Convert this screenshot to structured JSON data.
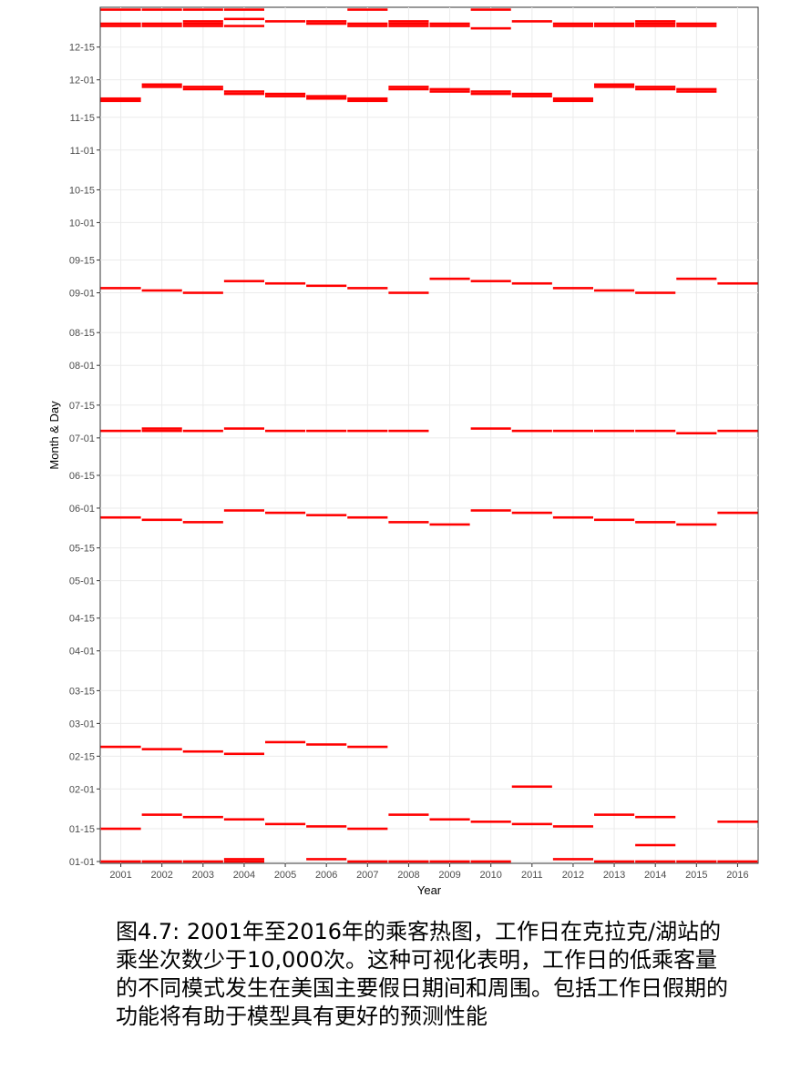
{
  "chart_data": {
    "type": "heatmap",
    "xlabel": "Year",
    "ylabel": "Month & Day",
    "years": [
      "2001",
      "2002",
      "2003",
      "2004",
      "2005",
      "2006",
      "2007",
      "2008",
      "2009",
      "2010",
      "2011",
      "2012",
      "2013",
      "2014",
      "2015",
      "2016"
    ],
    "y_ticks": [
      "01-01",
      "01-15",
      "02-01",
      "02-15",
      "03-01",
      "03-15",
      "04-01",
      "04-15",
      "05-01",
      "05-15",
      "06-01",
      "06-15",
      "07-01",
      "07-15",
      "08-01",
      "08-15",
      "09-01",
      "09-15",
      "10-01",
      "10-15",
      "11-01",
      "11-15",
      "12-01",
      "12-15"
    ],
    "ylim": [
      "01-01",
      "12-31"
    ],
    "grid": true,
    "mark_color": "#ff0000",
    "low_ridership_days": {
      "2001": [
        "01-01",
        "01-15",
        "02-19",
        "05-28",
        "07-04",
        "09-03",
        "11-22",
        "11-23",
        "12-24",
        "12-25",
        "12-31"
      ],
      "2002": [
        "01-01",
        "01-21",
        "02-18",
        "05-27",
        "07-04",
        "07-05",
        "09-02",
        "11-28",
        "11-29",
        "12-24",
        "12-25",
        "12-31"
      ],
      "2003": [
        "01-01",
        "01-20",
        "02-17",
        "05-26",
        "07-04",
        "09-01",
        "11-27",
        "11-28",
        "12-24",
        "12-25",
        "12-26",
        "12-31"
      ],
      "2004": [
        "01-01",
        "01-02",
        "01-19",
        "02-16",
        "05-31",
        "07-05",
        "09-06",
        "11-25",
        "11-26",
        "12-24",
        "12-27",
        "12-31"
      ],
      "2005": [
        "01-17",
        "02-21",
        "05-30",
        "07-04",
        "09-05",
        "11-24",
        "11-25",
        "12-26"
      ],
      "2006": [
        "01-02",
        "01-16",
        "02-20",
        "05-29",
        "07-04",
        "09-04",
        "11-23",
        "11-24",
        "12-25",
        "12-26"
      ],
      "2007": [
        "01-01",
        "01-15",
        "02-19",
        "05-28",
        "07-04",
        "09-03",
        "11-22",
        "11-23",
        "12-24",
        "12-25",
        "12-31"
      ],
      "2008": [
        "01-01",
        "01-21",
        "05-26",
        "07-04",
        "09-01",
        "11-27",
        "11-28",
        "12-24",
        "12-25",
        "12-26"
      ],
      "2009": [
        "01-01",
        "01-19",
        "05-25",
        "09-07",
        "11-26",
        "11-27",
        "12-24",
        "12-25"
      ],
      "2010": [
        "01-01",
        "01-18",
        "05-31",
        "07-05",
        "09-06",
        "11-25",
        "11-26",
        "12-23",
        "12-31"
      ],
      "2011": [
        "01-17",
        "02-02",
        "05-30",
        "07-04",
        "09-05",
        "11-24",
        "11-25",
        "12-26"
      ],
      "2012": [
        "01-02",
        "01-16",
        "05-28",
        "07-04",
        "09-03",
        "11-22",
        "11-23",
        "12-24",
        "12-25"
      ],
      "2013": [
        "01-01",
        "01-21",
        "05-27",
        "07-04",
        "09-02",
        "11-28",
        "11-29",
        "12-24",
        "12-25"
      ],
      "2014": [
        "01-01",
        "01-08",
        "01-20",
        "05-26",
        "07-04",
        "09-01",
        "11-27",
        "11-28",
        "12-24",
        "12-25",
        "12-26"
      ],
      "2015": [
        "01-01",
        "05-25",
        "07-03",
        "09-07",
        "11-26",
        "11-27",
        "12-24",
        "12-25"
      ],
      "2016": [
        "01-01",
        "01-18",
        "05-30",
        "07-04",
        "09-05"
      ]
    }
  },
  "caption": "图4.7: 2001年至2016年的乘客热图，工作日在克拉克/湖站的乘坐次数少于10,000次。这种可视化表明，工作日的低乘客量的不同模式发生在美国主要假日期间和周围。包括工作日假期的功能将有助于模型具有更好的预测性能"
}
